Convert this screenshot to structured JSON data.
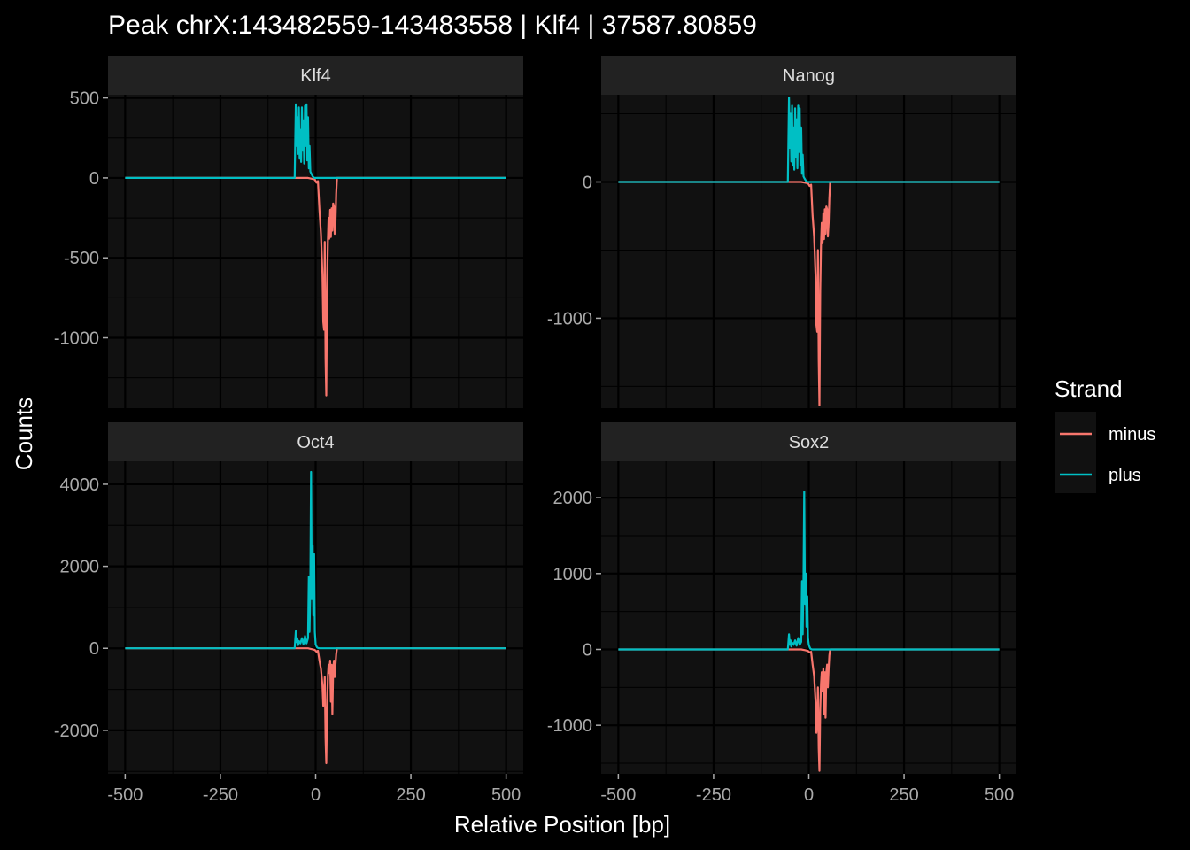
{
  "title": "Peak chrX:143482559-143483558 | Klf4 | 37587.80859",
  "xlabel": "Relative Position [bp]",
  "ylabel": "Counts",
  "legend": {
    "title": "Strand",
    "items": [
      {
        "label": "minus",
        "color": "#F8766D"
      },
      {
        "label": "plus",
        "color": "#00BFC4"
      }
    ]
  },
  "colors": {
    "background": "#000000",
    "panel": "#111111",
    "strip": "#222222",
    "grid": "#000000",
    "text": "#FFFFFF",
    "axis_text": "#AAAAAA"
  },
  "chart_data": {
    "type": "line",
    "facet": "2x2",
    "xlim": [
      -500,
      500
    ],
    "x_ticks": [
      "-500",
      "-250",
      "0",
      "250",
      "500"
    ],
    "x_tick_values": [
      -500,
      -250,
      0,
      250,
      500
    ],
    "panels": [
      {
        "name": "Klf4",
        "ylim": [
          -1440,
          520
        ],
        "y_ticks": [
          500,
          0,
          -500,
          -1000
        ],
        "y_tick_labels": [
          "500",
          "0",
          "-500",
          "-1000"
        ],
        "series": [
          {
            "name": "plus",
            "x": [
              -500,
              -55,
              -52,
              -50,
              -48,
              -46,
              -44,
              -42,
              -40,
              -38,
              -36,
              -34,
              -32,
              -30,
              -28,
              -26,
              -24,
              -22,
              -20,
              -18,
              -16,
              -14,
              -12,
              -10,
              -8,
              -6,
              -4,
              0,
              500
            ],
            "y": [
              0,
              0,
              460,
              200,
              380,
              150,
              440,
              120,
              300,
              100,
              440,
              170,
              360,
              90,
              450,
              200,
              460,
              110,
              380,
              60,
              200,
              40,
              30,
              20,
              10,
              5,
              0,
              0,
              0
            ]
          },
          {
            "name": "minus",
            "x": [
              -500,
              -20,
              -10,
              -2,
              2,
              6,
              10,
              14,
              18,
              20,
              22,
              24,
              26,
              28,
              30,
              32,
              34,
              36,
              38,
              40,
              42,
              44,
              46,
              48,
              50,
              52,
              54,
              56,
              60,
              500
            ],
            "y": [
              0,
              0,
              -5,
              -10,
              -30,
              -20,
              -200,
              -350,
              -600,
              -900,
              -950,
              -400,
              -1130,
              -1360,
              -700,
              -400,
              -250,
              -380,
              -200,
              -370,
              -190,
              -330,
              -160,
              -180,
              -350,
              -280,
              -100,
              0,
              0,
              0
            ]
          }
        ]
      },
      {
        "name": "Nanog",
        "ylim": [
          -1660,
          640
        ],
        "y_ticks": [
          0,
          -1000
        ],
        "y_tick_labels": [
          "0",
          "-1000"
        ],
        "series": [
          {
            "name": "plus",
            "x": [
              -500,
              -55,
              -52,
              -50,
              -48,
              -46,
              -44,
              -42,
              -40,
              -38,
              -36,
              -34,
              -32,
              -30,
              -28,
              -26,
              -24,
              -22,
              -20,
              -18,
              -16,
              -14,
              -12,
              -10,
              -8,
              -6,
              -4,
              0,
              500
            ],
            "y": [
              0,
              0,
              620,
              250,
              500,
              150,
              560,
              120,
              400,
              90,
              540,
              180,
              460,
              100,
              560,
              220,
              540,
              120,
              400,
              60,
              200,
              40,
              30,
              20,
              10,
              5,
              0,
              0,
              0
            ]
          },
          {
            "name": "minus",
            "x": [
              -500,
              -20,
              -10,
              -2,
              2,
              6,
              10,
              14,
              18,
              20,
              22,
              24,
              26,
              28,
              30,
              32,
              34,
              36,
              38,
              40,
              42,
              44,
              46,
              48,
              50,
              52,
              54,
              56,
              60,
              500
            ],
            "y": [
              0,
              0,
              -5,
              -10,
              -30,
              -20,
              -250,
              -400,
              -700,
              -1050,
              -1100,
              -500,
              -1310,
              -1640,
              -800,
              -450,
              -300,
              -450,
              -230,
              -420,
              -200,
              -380,
              -180,
              -200,
              -400,
              -300,
              -120,
              0,
              0,
              0
            ]
          }
        ]
      },
      {
        "name": "Oct4",
        "ylim": [
          -3060,
          4560
        ],
        "y_ticks": [
          4000,
          2000,
          0,
          -2000
        ],
        "y_tick_labels": [
          "4000",
          "2000",
          "0",
          "-2000"
        ],
        "series": [
          {
            "name": "plus",
            "x": [
              -500,
              -55,
              -52,
              -50,
              -48,
              -46,
              -44,
              -40,
              -36,
              -32,
              -28,
              -24,
              -20,
              -18,
              -16,
              -14,
              -12,
              -10,
              -8,
              -6,
              -4,
              -2,
              0,
              2,
              4,
              6,
              8,
              10,
              500
            ],
            "y": [
              0,
              0,
              420,
              150,
              250,
              80,
              180,
              120,
              250,
              100,
              300,
              120,
              250,
              1750,
              400,
              1500,
              4300,
              1200,
              2500,
              800,
              2300,
              400,
              100,
              50,
              20,
              10,
              5,
              0,
              0
            ]
          },
          {
            "name": "minus",
            "x": [
              -500,
              -20,
              -10,
              -2,
              2,
              6,
              10,
              14,
              18,
              20,
              22,
              24,
              26,
              28,
              30,
              32,
              34,
              36,
              38,
              40,
              42,
              44,
              46,
              48,
              50,
              52,
              54,
              56,
              60,
              500
            ],
            "y": [
              0,
              0,
              -20,
              -40,
              -80,
              -60,
              -300,
              -500,
              -900,
              -1400,
              -1200,
              -700,
              -2200,
              -2800,
              -1500,
              -700,
              -400,
              -600,
              -300,
              -1300,
              -400,
              -1600,
              -500,
              -300,
              -700,
              -400,
              -150,
              0,
              0,
              0
            ]
          }
        ]
      },
      {
        "name": "Sox2",
        "ylim": [
          -1640,
          2480
        ],
        "y_ticks": [
          2000,
          1000,
          0,
          -1000
        ],
        "y_tick_labels": [
          "2000",
          "1000",
          "0",
          "-1000"
        ],
        "series": [
          {
            "name": "plus",
            "x": [
              -500,
              -55,
              -52,
              -50,
              -48,
              -46,
              -44,
              -40,
              -36,
              -32,
              -28,
              -24,
              -20,
              -18,
              -16,
              -14,
              -12,
              -10,
              -8,
              -6,
              -4,
              -2,
              0,
              2,
              4,
              6,
              8,
              10,
              500
            ],
            "y": [
              0,
              0,
              200,
              60,
              120,
              40,
              90,
              60,
              120,
              50,
              150,
              60,
              100,
              900,
              200,
              950,
              2080,
              600,
              1000,
              300,
              700,
              150,
              60,
              30,
              10,
              5,
              0,
              0,
              0
            ]
          },
          {
            "name": "minus",
            "x": [
              -500,
              -20,
              -10,
              -2,
              2,
              6,
              10,
              14,
              18,
              20,
              22,
              24,
              26,
              28,
              30,
              32,
              34,
              36,
              38,
              40,
              42,
              44,
              46,
              48,
              50,
              52,
              54,
              56,
              60,
              500
            ],
            "y": [
              0,
              0,
              -10,
              -20,
              -40,
              -30,
              -200,
              -350,
              -700,
              -1100,
              -900,
              -500,
              -1300,
              -1600,
              -800,
              -450,
              -300,
              -550,
              -250,
              -850,
              -300,
              -900,
              -300,
              -200,
              -500,
              -250,
              -80,
              0,
              0,
              0
            ]
          }
        ]
      }
    ]
  }
}
